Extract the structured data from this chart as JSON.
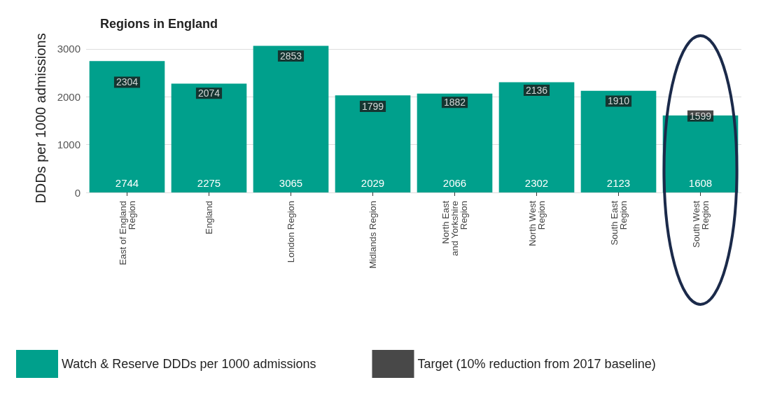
{
  "chart_data": {
    "type": "bar",
    "title": "Regions in England",
    "ylabel": "DDDs per 1000 admissions",
    "categories": [
      "East of England\nRegion",
      "England",
      "London Region",
      "Midlands Region",
      "North East\nand Yorkshire\nRegion",
      "North West\nRegion",
      "South East\nRegion",
      "South West\nRegion"
    ],
    "series": [
      {
        "name": "Watch & Reserve DDDs per 1000 admissions",
        "type": "bar",
        "color": "#00a08c",
        "values": [
          2744,
          2275,
          3065,
          2029,
          2066,
          2302,
          2123,
          1608
        ]
      },
      {
        "name": "Target (10% reduction from 2017 baseline)",
        "type": "scatter",
        "color": "#1a1a1a",
        "values": [
          2304,
          2074,
          2853,
          1799,
          1882,
          2136,
          1910,
          1599
        ]
      }
    ],
    "ylim": [
      0,
      3100
    ],
    "yticks": [
      0,
      1000,
      2000,
      3000
    ],
    "grid": "y",
    "legend": "bottom",
    "data_labels": true
  }
}
